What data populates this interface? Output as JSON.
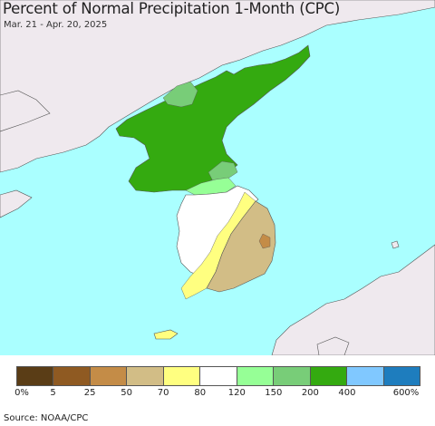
{
  "title": "Percent of Normal Precipitation 1-Month (CPC)",
  "subtitle": "Mar. 21 - Apr. 20, 2025",
  "source": "Source: NOAA/CPC",
  "colors": {
    "ocean": "#aaffff",
    "land_outside": "#efe9ee",
    "border": "#555555"
  },
  "legend": {
    "bins": [
      {
        "color": "#5a3d16"
      },
      {
        "color": "#8f5a22"
      },
      {
        "color": "#c48c47"
      },
      {
        "color": "#d2bd86"
      },
      {
        "color": "#ffff80"
      },
      {
        "color": "#ffffff"
      },
      {
        "color": "#96ff96"
      },
      {
        "color": "#78cd78"
      },
      {
        "color": "#34aa10"
      },
      {
        "color": "#80c8ff"
      },
      {
        "color": "#1e7dbe"
      }
    ],
    "ticks": [
      "0%",
      "5",
      "25",
      "50",
      "70",
      "80",
      "120",
      "150",
      "200",
      "400",
      "600%"
    ]
  }
}
